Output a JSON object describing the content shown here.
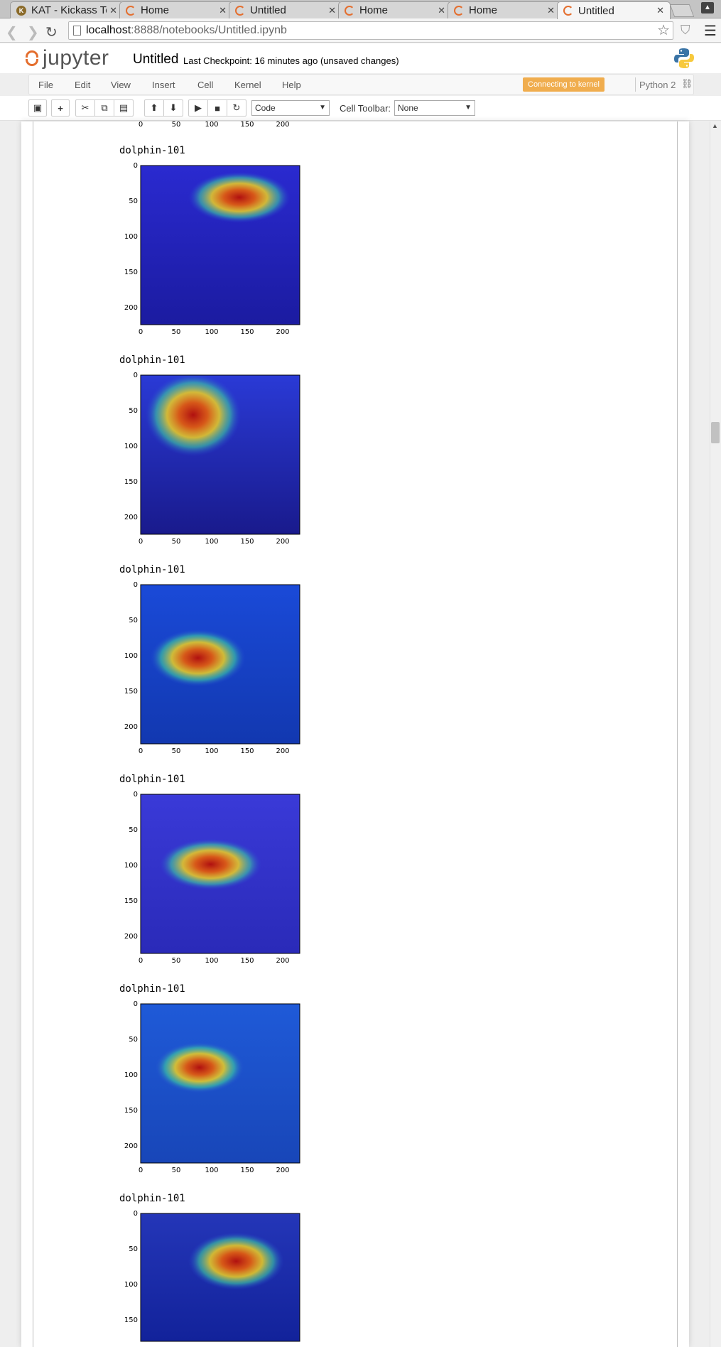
{
  "browser": {
    "tabs": [
      {
        "title": "KAT - Kickass To",
        "favicon": "kat-icon",
        "active": false
      },
      {
        "title": "Home",
        "favicon": "jupyter-icon",
        "active": false
      },
      {
        "title": "Untitled",
        "favicon": "jupyter-icon",
        "active": false
      },
      {
        "title": "Home",
        "favicon": "jupyter-icon",
        "active": false
      },
      {
        "title": "Home",
        "favicon": "jupyter-icon",
        "active": false
      },
      {
        "title": "Untitled",
        "favicon": "jupyter-icon",
        "active": true
      }
    ],
    "url_host": "localhost",
    "url_rest": ":8888/notebooks/Untitled.ipynb"
  },
  "jupyter": {
    "logo_text": "jupyter",
    "notebook_name": "Untitled",
    "checkpoint": "Last Checkpoint: 16 minutes ago (unsaved changes)",
    "menu": [
      "File",
      "Edit",
      "View",
      "Insert",
      "Cell",
      "Kernel",
      "Help"
    ],
    "kernel_badge": "Connecting to kernel",
    "kernel_name": "Python 2",
    "cell_type_select": "Code",
    "cell_toolbar_label": "Cell Toolbar:",
    "cell_toolbar_select": "None",
    "accent_color": "#f0ad4e",
    "brand_color": "#e46e2e"
  },
  "outputs": {
    "partial_top_axis_ticks": [
      "0",
      "50",
      "100",
      "150",
      "200"
    ],
    "items": [
      {
        "label": "dolphin-101"
      },
      {
        "label": "dolphin-101"
      },
      {
        "label": "dolphin-101"
      },
      {
        "label": "dolphin-101"
      },
      {
        "label": "dolphin-101"
      },
      {
        "label": "dolphin-101"
      }
    ],
    "x_ticks": [
      "0",
      "50",
      "100",
      "150",
      "200"
    ],
    "y_ticks": [
      "0",
      "50",
      "100",
      "150",
      "200"
    ],
    "last_item_y_ticks": [
      "0",
      "50",
      "100",
      "150"
    ]
  }
}
